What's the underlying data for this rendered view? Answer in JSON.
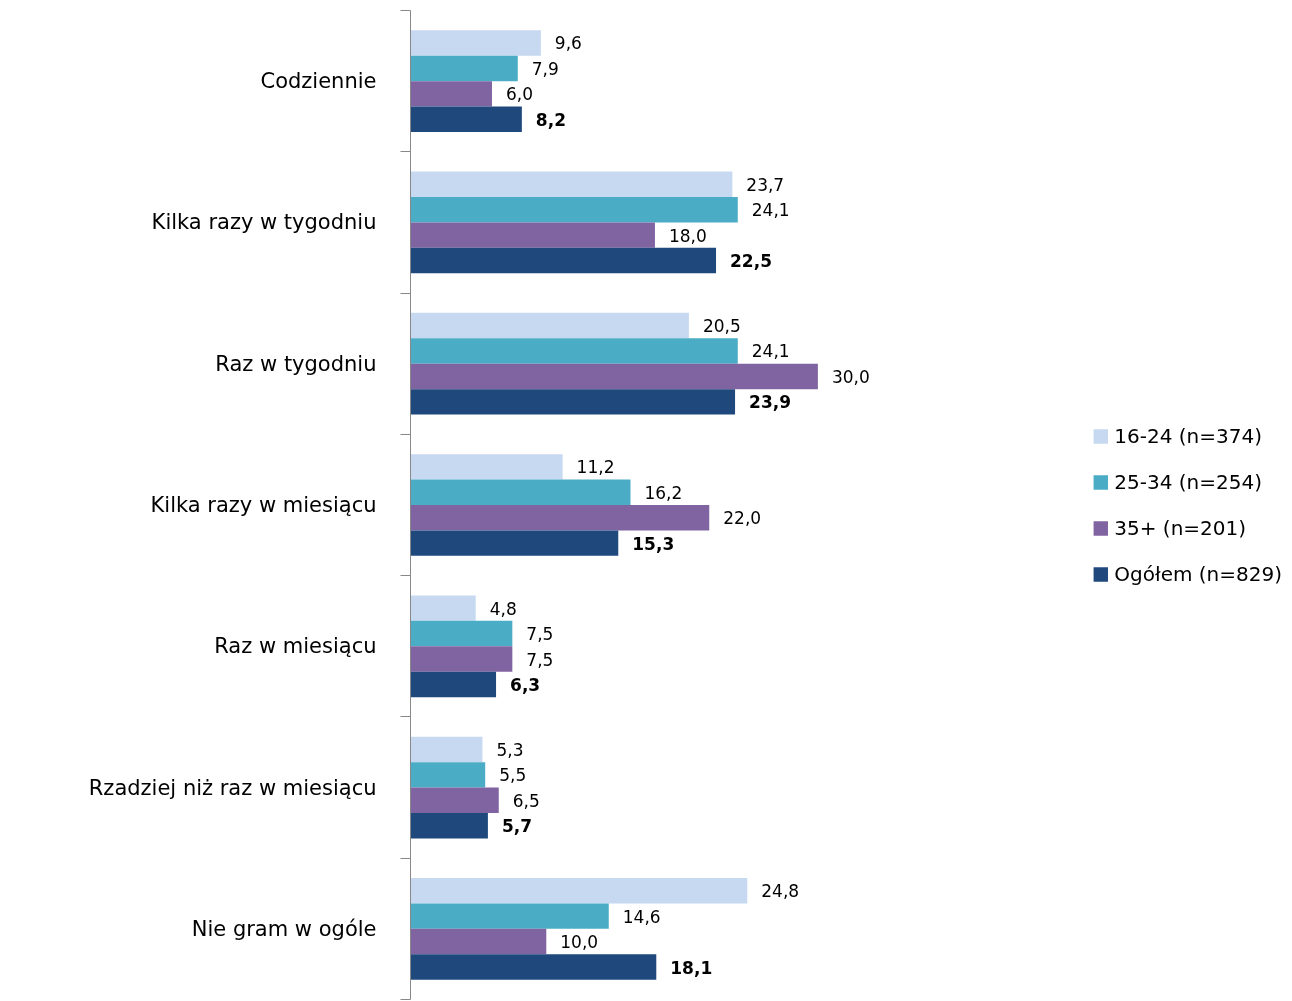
{
  "chart_data": {
    "type": "bar",
    "orientation": "horizontal",
    "categories": [
      "Codziennie",
      "Kilka razy w tygodniu",
      "Raz w tygodniu",
      "Kilka razy w miesiącu",
      "Raz w miesiącu",
      "Rzadziej niż raz w miesiącu",
      "Nie gram w ogóle"
    ],
    "series": [
      {
        "name": "16-24 (n=374)",
        "color": "#c6d9f1",
        "values": [
          9.6,
          23.7,
          20.5,
          11.2,
          4.8,
          5.3,
          24.8
        ],
        "value_labels": [
          "9,6",
          "23,7",
          "20,5",
          "11,2",
          "4,8",
          "5,3",
          "24,8"
        ]
      },
      {
        "name": "25-34 (n=254)",
        "color": "#4bacc6",
        "values": [
          7.9,
          24.1,
          24.1,
          16.2,
          7.5,
          5.5,
          14.6
        ],
        "value_labels": [
          "7,9",
          "24,1",
          "24,1",
          "16,2",
          "7,5",
          "5,5",
          "14,6"
        ]
      },
      {
        "name": "35+ (n=201)",
        "color": "#8064a2",
        "values": [
          6.0,
          18.0,
          30.0,
          22.0,
          7.5,
          6.5,
          10.0
        ],
        "value_labels": [
          "6,0",
          "18,0",
          "30,0",
          "22,0",
          "7,5",
          "6,5",
          "10,0"
        ]
      },
      {
        "name": "Ogółem (n=829)",
        "color": "#1f497d",
        "values": [
          8.2,
          22.5,
          23.9,
          15.3,
          6.3,
          5.7,
          18.1
        ],
        "value_labels": [
          "8,2",
          "22,5",
          "23,9",
          "15,3",
          "6,3",
          "5,7",
          "18,1"
        ]
      }
    ],
    "grid": false,
    "legend": "right"
  }
}
